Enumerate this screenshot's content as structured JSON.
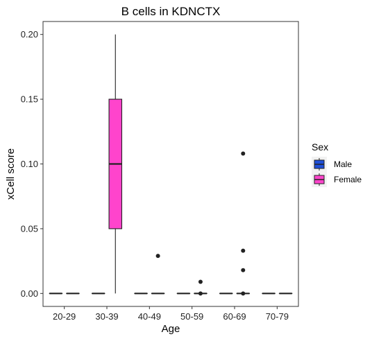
{
  "chart_data": {
    "type": "box",
    "title": "B cells in KDNCTX",
    "xlabel": "Age",
    "ylabel": "xCell score",
    "ylim": [
      -0.01,
      0.21
    ],
    "yticks": [
      "0.00",
      "0.05",
      "0.10",
      "0.15",
      "0.20"
    ],
    "ytick_values": [
      0,
      0.05,
      0.1,
      0.15,
      0.2
    ],
    "grid": false,
    "legend_position": "right",
    "categories": [
      "20-29",
      "30-39",
      "40-49",
      "50-59",
      "60-69",
      "70-79"
    ],
    "legend": {
      "title": "Sex",
      "entries": [
        {
          "name": "Male",
          "color": "#1f4fd8"
        },
        {
          "name": "Female",
          "color": "#ff44cc"
        }
      ]
    },
    "series": [
      {
        "name": "Male",
        "color": "#1f4fd8",
        "boxes": [
          {
            "category": "20-29",
            "min": 0,
            "q1": 0,
            "median": 0,
            "q3": 0,
            "max": 0,
            "outliers": []
          },
          {
            "category": "30-39",
            "min": 0,
            "q1": 0,
            "median": 0,
            "q3": 0,
            "max": 0,
            "outliers": []
          },
          {
            "category": "40-49",
            "min": 0,
            "q1": 0,
            "median": 0,
            "q3": 0,
            "max": 0,
            "outliers": []
          },
          {
            "category": "50-59",
            "min": 0,
            "q1": 0,
            "median": 0,
            "q3": 0,
            "max": 0,
            "outliers": []
          },
          {
            "category": "60-69",
            "min": 0,
            "q1": 0,
            "median": 0,
            "q3": 0,
            "max": 0,
            "outliers": []
          },
          {
            "category": "70-79",
            "min": 0,
            "q1": 0,
            "median": 0,
            "q3": 0,
            "max": 0,
            "outliers": []
          }
        ]
      },
      {
        "name": "Female",
        "color": "#ff44cc",
        "boxes": [
          {
            "category": "20-29",
            "min": 0,
            "q1": 0,
            "median": 0,
            "q3": 0,
            "max": 0,
            "outliers": []
          },
          {
            "category": "30-39",
            "min": 0,
            "q1": 0.05,
            "median": 0.1,
            "q3": 0.15,
            "max": 0.2,
            "outliers": []
          },
          {
            "category": "40-49",
            "min": 0,
            "q1": 0,
            "median": 0,
            "q3": 0,
            "max": 0,
            "outliers": [
              0.029
            ]
          },
          {
            "category": "50-59",
            "min": 0,
            "q1": 0,
            "median": 0,
            "q3": 0,
            "max": 0,
            "outliers": [
              0.009,
              0.0
            ]
          },
          {
            "category": "60-69",
            "min": 0,
            "q1": 0,
            "median": 0,
            "q3": 0,
            "max": 0,
            "outliers": [
              0.108,
              0.033,
              0.018,
              0.0
            ]
          },
          {
            "category": "70-79",
            "min": 0,
            "q1": 0,
            "median": 0,
            "q3": 0,
            "max": 0,
            "outliers": []
          }
        ]
      }
    ]
  }
}
